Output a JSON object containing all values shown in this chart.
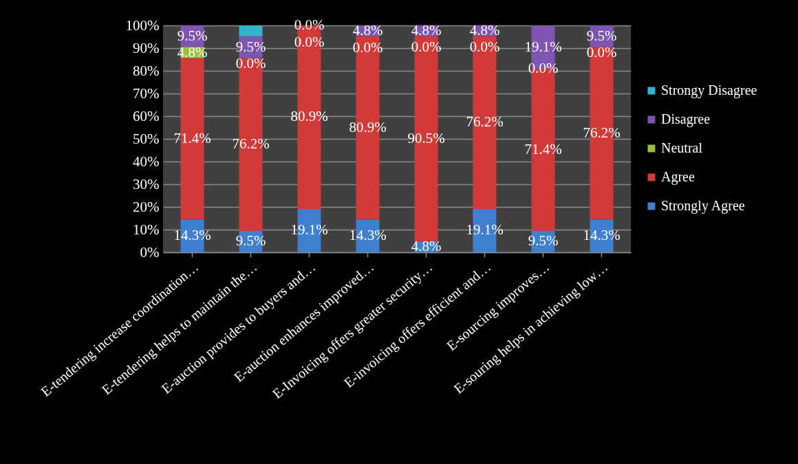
{
  "chart_data": {
    "type": "bar",
    "stacked": true,
    "categories": [
      "E-tendering increase coordination…",
      "E-tendering helps to maintain the…",
      "E-auction provides to buyers and…",
      "E-auction enhances improved…",
      "E-Invoicing offers greater security…",
      "E-invoicing offers efficient and…",
      "E-sourcing improves…",
      "E-souring helps in achieving low…"
    ],
    "series": [
      {
        "name": "Strongly Agree",
        "color": "#3f7fd0",
        "values": [
          14.3,
          9.5,
          19.1,
          14.3,
          4.8,
          19.1,
          9.5,
          14.3
        ],
        "value_labels": [
          "14.3%",
          "9.5%",
          "19.1%",
          "14.3%",
          "4.8%",
          "19.1%",
          "9.5%",
          "14.3%"
        ]
      },
      {
        "name": "Agree",
        "color": "#d23a3a",
        "values": [
          71.4,
          76.2,
          80.9,
          80.9,
          90.5,
          76.2,
          71.4,
          76.2
        ],
        "value_labels": [
          "71.4%",
          "76.2%",
          "80.9%",
          "80.9%",
          "90.5%",
          "76.2%",
          "71.4%",
          "76.2%"
        ]
      },
      {
        "name": "Neutral",
        "color": "#9bc13c",
        "values": [
          4.8,
          0.0,
          0.0,
          0.0,
          0.0,
          0.0,
          0.0,
          0.0
        ],
        "value_labels": [
          "4.8%",
          "0.0%",
          "0.0%",
          "0.0%",
          "0.0%",
          "0.0%",
          "0.0%",
          "0.0%"
        ]
      },
      {
        "name": "Disagree",
        "color": "#7e55b0",
        "values": [
          9.5,
          9.5,
          0.0,
          4.8,
          4.8,
          4.8,
          19.1,
          9.5
        ],
        "value_labels": [
          "9.5%",
          "9.5%",
          "0.0%",
          "4.8%",
          "4.8%",
          "4.8%",
          "19.1%",
          "9.5%"
        ]
      },
      {
        "name": "Strongy Disagree",
        "color": "#33b3cc",
        "values": [
          null,
          4.8,
          null,
          null,
          null,
          null,
          null,
          null
        ]
      }
    ],
    "ylim": [
      0,
      100
    ],
    "yticks": [
      {
        "value": 0,
        "label": "0%"
      },
      {
        "value": 10,
        "label": "10%"
      },
      {
        "value": 20,
        "label": "20%"
      },
      {
        "value": 30,
        "label": "30%"
      },
      {
        "value": 40,
        "label": "40%"
      },
      {
        "value": 50,
        "label": "50%"
      },
      {
        "value": 60,
        "label": "60%"
      },
      {
        "value": 70,
        "label": "70%"
      },
      {
        "value": 80,
        "label": "80%"
      },
      {
        "value": 90,
        "label": "90%"
      },
      {
        "value": 100,
        "label": "100%"
      }
    ],
    "grid": "y",
    "legend": "right"
  }
}
